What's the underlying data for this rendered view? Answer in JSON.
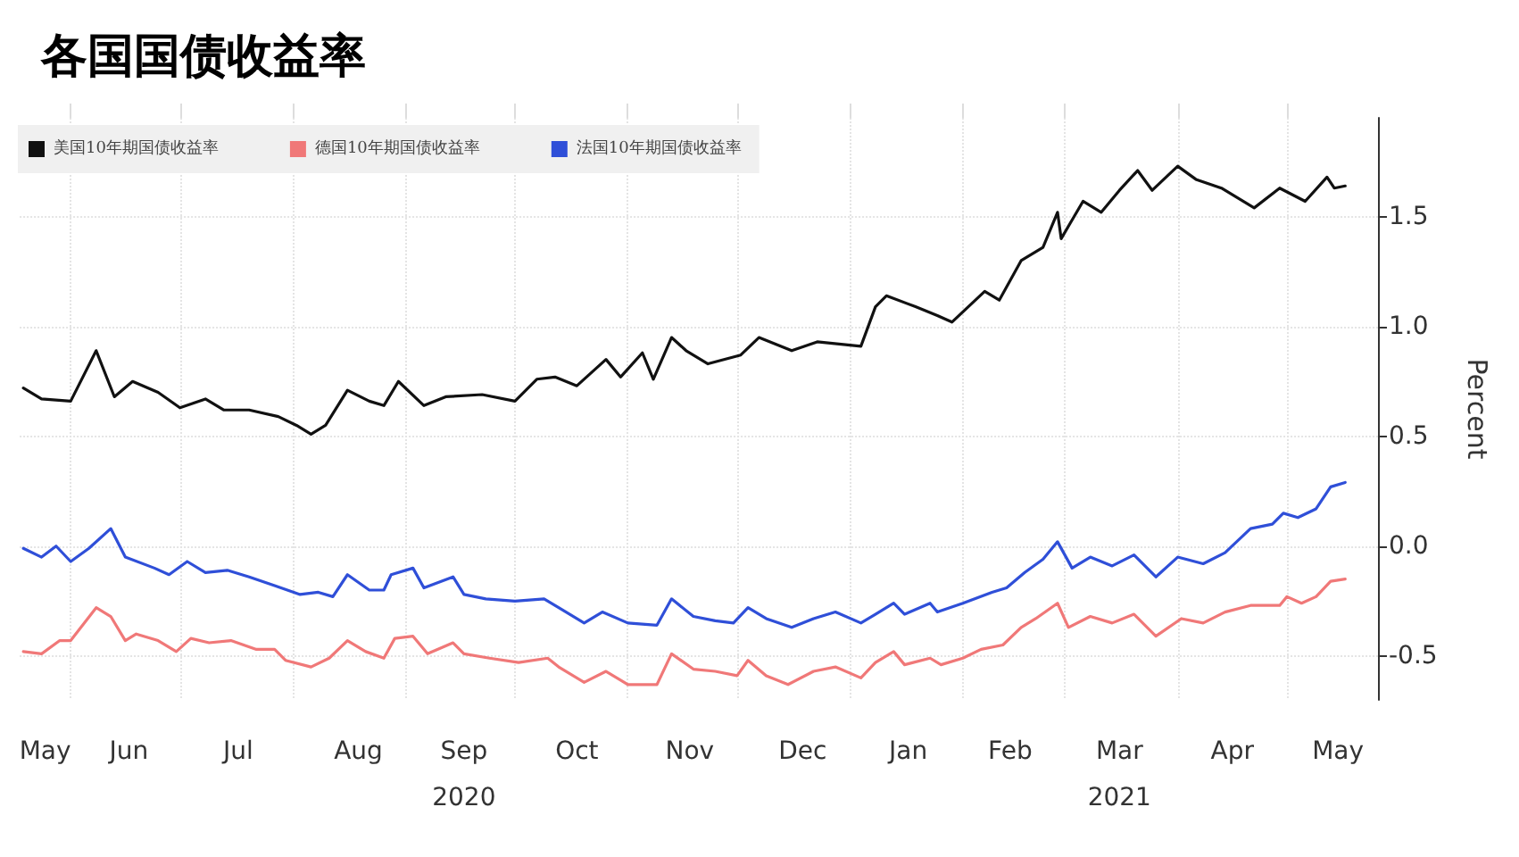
{
  "chart_data": {
    "type": "line",
    "title": "各国国债收益率",
    "ylabel": "Percent",
    "xlim": [
      "2020-05-18",
      "2021-05-26"
    ],
    "ylim": [
      -0.7,
      1.95
    ],
    "xticks": [
      {
        "value": "2020-05-25",
        "label": "May"
      },
      {
        "value": "2020-06-01",
        "label": null
      },
      {
        "value": "2020-06-17",
        "label": "Jun"
      },
      {
        "value": "2020-07-01",
        "label": null
      },
      {
        "value": "2020-07-17",
        "label": "Jul"
      },
      {
        "value": "2020-08-01",
        "label": null
      },
      {
        "value": "2020-08-19",
        "label": "Aug"
      },
      {
        "value": "2020-09-01",
        "label": null
      },
      {
        "value": "2020-09-17",
        "label": "Sep\n2020"
      },
      {
        "value": "2020-10-01",
        "label": null
      },
      {
        "value": "2020-10-18",
        "label": "Oct"
      },
      {
        "value": "2020-11-01",
        "label": null
      },
      {
        "value": "2020-11-18",
        "label": "Nov"
      },
      {
        "value": "2020-12-01",
        "label": null
      },
      {
        "value": "2020-12-19",
        "label": "Dec"
      },
      {
        "value": "2021-01-01",
        "label": null
      },
      {
        "value": "2021-01-17",
        "label": "Jan"
      },
      {
        "value": "2021-02-01",
        "label": null
      },
      {
        "value": "2021-02-14",
        "label": "Feb"
      },
      {
        "value": "2021-03-01",
        "label": null
      },
      {
        "value": "2021-03-16",
        "label": "Mar\n2021"
      },
      {
        "value": "2021-04-01",
        "label": null
      },
      {
        "value": "2021-04-16",
        "label": "Apr"
      },
      {
        "value": "2021-05-01",
        "label": null
      },
      {
        "value": "2021-05-15",
        "label": "May"
      }
    ],
    "yticks": [
      {
        "value": -0.5,
        "label": "-0.5"
      },
      {
        "value": 0,
        "label": "0.0"
      },
      {
        "value": 0.5,
        "label": "0.5"
      },
      {
        "value": 1,
        "label": "1.0"
      },
      {
        "value": 1.5,
        "label": "1.5"
      }
    ],
    "grid": true,
    "legend": "top left",
    "series": [
      {
        "name": "美国10年期国债收益率",
        "color": "#111111",
        "x": [
          "2020-05-19",
          "2020-05-24",
          "2020-06-01",
          "2020-06-08",
          "2020-06-13",
          "2020-06-18",
          "2020-06-25",
          "2020-07-01",
          "2020-07-08",
          "2020-07-13",
          "2020-07-20",
          "2020-07-28",
          "2020-08-02",
          "2020-08-06",
          "2020-08-10",
          "2020-08-16",
          "2020-08-22",
          "2020-08-26",
          "2020-08-30",
          "2020-09-06",
          "2020-09-12",
          "2020-09-22",
          "2020-10-01",
          "2020-10-07",
          "2020-10-12",
          "2020-10-18",
          "2020-10-26",
          "2020-10-30",
          "2020-11-05",
          "2020-11-08",
          "2020-11-13",
          "2020-11-17",
          "2020-11-23",
          "2020-12-02",
          "2020-12-07",
          "2020-12-16",
          "2020-12-23",
          "2021-01-04",
          "2021-01-08",
          "2021-01-11",
          "2021-01-19",
          "2021-01-25",
          "2021-01-29",
          "2021-02-07",
          "2021-02-11",
          "2021-02-17",
          "2021-02-23",
          "2021-02-27",
          "2021-02-28",
          "2021-03-06",
          "2021-03-11",
          "2021-03-16",
          "2021-03-21",
          "2021-03-25",
          "2021-04-01",
          "2021-04-06",
          "2021-04-13",
          "2021-04-22",
          "2021-04-29",
          "2021-05-06",
          "2021-05-12",
          "2021-05-14",
          "2021-05-17"
        ],
        "values": [
          0.72,
          0.67,
          0.66,
          0.89,
          0.68,
          0.75,
          0.7,
          0.63,
          0.67,
          0.62,
          0.62,
          0.59,
          0.55,
          0.51,
          0.55,
          0.71,
          0.66,
          0.64,
          0.75,
          0.64,
          0.68,
          0.69,
          0.66,
          0.76,
          0.77,
          0.73,
          0.85,
          0.77,
          0.88,
          0.76,
          0.95,
          0.89,
          0.83,
          0.87,
          0.95,
          0.89,
          0.93,
          0.91,
          1.09,
          1.14,
          1.09,
          1.05,
          1.02,
          1.16,
          1.12,
          1.3,
          1.36,
          1.52,
          1.4,
          1.57,
          1.52,
          1.62,
          1.71,
          1.62,
          1.73,
          1.67,
          1.63,
          1.54,
          1.63,
          1.57,
          1.68,
          1.63,
          1.64
        ]
      },
      {
        "name": "德国10年期国债收益率",
        "color": "#f07878",
        "x": [
          "2020-05-19",
          "2020-05-24",
          "2020-05-29",
          "2020-06-01",
          "2020-06-08",
          "2020-06-12",
          "2020-06-16",
          "2020-06-19",
          "2020-06-25",
          "2020-06-30",
          "2020-07-04",
          "2020-07-09",
          "2020-07-15",
          "2020-07-22",
          "2020-07-27",
          "2020-07-30",
          "2020-08-06",
          "2020-08-11",
          "2020-08-16",
          "2020-08-21",
          "2020-08-26",
          "2020-08-29",
          "2020-09-03",
          "2020-09-07",
          "2020-09-14",
          "2020-09-17",
          "2020-09-24",
          "2020-10-02",
          "2020-10-10",
          "2020-10-13",
          "2020-10-20",
          "2020-10-26",
          "2020-11-01",
          "2020-11-09",
          "2020-11-13",
          "2020-11-19",
          "2020-11-25",
          "2020-12-01",
          "2020-12-04",
          "2020-12-09",
          "2020-12-15",
          "2020-12-22",
          "2020-12-28",
          "2021-01-04",
          "2021-01-08",
          "2021-01-13",
          "2021-01-16",
          "2021-01-23",
          "2021-01-26",
          "2021-02-01",
          "2021-02-06",
          "2021-02-12",
          "2021-02-17",
          "2021-02-21",
          "2021-02-27",
          "2021-03-02",
          "2021-03-08",
          "2021-03-14",
          "2021-03-20",
          "2021-03-26",
          "2021-04-02",
          "2021-04-08",
          "2021-04-14",
          "2021-04-21",
          "2021-04-29",
          "2021-05-01",
          "2021-05-05",
          "2021-05-09",
          "2021-05-13",
          "2021-05-17"
        ],
        "values": [
          -0.48,
          -0.49,
          -0.43,
          -0.43,
          -0.28,
          -0.32,
          -0.43,
          -0.4,
          -0.43,
          -0.48,
          -0.42,
          -0.44,
          -0.43,
          -0.47,
          -0.47,
          -0.52,
          -0.55,
          -0.51,
          -0.43,
          -0.48,
          -0.51,
          -0.42,
          -0.41,
          -0.49,
          -0.44,
          -0.49,
          -0.51,
          -0.53,
          -0.51,
          -0.55,
          -0.62,
          -0.57,
          -0.63,
          -0.63,
          -0.49,
          -0.56,
          -0.57,
          -0.59,
          -0.52,
          -0.59,
          -0.63,
          -0.57,
          -0.55,
          -0.6,
          -0.53,
          -0.48,
          -0.54,
          -0.51,
          -0.54,
          -0.51,
          -0.47,
          -0.45,
          -0.37,
          -0.33,
          -0.26,
          -0.37,
          -0.32,
          -0.35,
          -0.31,
          -0.41,
          -0.33,
          -0.35,
          -0.3,
          -0.27,
          -0.27,
          -0.23,
          -0.26,
          -0.23,
          -0.16,
          -0.15
        ]
      },
      {
        "name": "法国10年期国债收益率",
        "color": "#2f4fd8",
        "x": [
          "2020-05-19",
          "2020-05-24",
          "2020-05-28",
          "2020-06-01",
          "2020-06-06",
          "2020-06-12",
          "2020-06-16",
          "2020-06-24",
          "2020-06-28",
          "2020-07-03",
          "2020-07-08",
          "2020-07-14",
          "2020-07-20",
          "2020-07-27",
          "2020-08-03",
          "2020-08-08",
          "2020-08-12",
          "2020-08-16",
          "2020-08-22",
          "2020-08-26",
          "2020-08-28",
          "2020-09-03",
          "2020-09-06",
          "2020-09-14",
          "2020-09-17",
          "2020-09-23",
          "2020-10-01",
          "2020-10-09",
          "2020-10-13",
          "2020-10-20",
          "2020-10-25",
          "2020-11-01",
          "2020-11-09",
          "2020-11-13",
          "2020-11-19",
          "2020-11-25",
          "2020-11-30",
          "2020-12-04",
          "2020-12-09",
          "2020-12-16",
          "2020-12-22",
          "2020-12-28",
          "2021-01-04",
          "2021-01-08",
          "2021-01-13",
          "2021-01-16",
          "2021-01-23",
          "2021-01-25",
          "2021-02-01",
          "2021-02-09",
          "2021-02-13",
          "2021-02-18",
          "2021-02-23",
          "2021-02-27",
          "2021-03-03",
          "2021-03-08",
          "2021-03-14",
          "2021-03-20",
          "2021-03-26",
          "2021-04-01",
          "2021-04-08",
          "2021-04-14",
          "2021-04-21",
          "2021-04-27",
          "2021-04-30",
          "2021-05-04",
          "2021-05-09",
          "2021-05-13",
          "2021-05-17"
        ],
        "values": [
          -0.01,
          -0.05,
          0.0,
          -0.07,
          -0.01,
          0.08,
          -0.05,
          -0.1,
          -0.13,
          -0.07,
          -0.12,
          -0.11,
          -0.14,
          -0.18,
          -0.22,
          -0.21,
          -0.23,
          -0.13,
          -0.2,
          -0.2,
          -0.13,
          -0.1,
          -0.19,
          -0.14,
          -0.22,
          -0.24,
          -0.25,
          -0.24,
          -0.28,
          -0.35,
          -0.3,
          -0.35,
          -0.36,
          -0.24,
          -0.32,
          -0.34,
          -0.35,
          -0.28,
          -0.33,
          -0.37,
          -0.33,
          -0.3,
          -0.35,
          -0.31,
          -0.26,
          -0.31,
          -0.26,
          -0.3,
          -0.26,
          -0.21,
          -0.19,
          -0.12,
          -0.06,
          0.02,
          -0.1,
          -0.05,
          -0.09,
          -0.04,
          -0.14,
          -0.05,
          -0.08,
          -0.03,
          0.08,
          0.1,
          0.15,
          0.13,
          0.17,
          0.27,
          0.29
        ]
      }
    ]
  }
}
